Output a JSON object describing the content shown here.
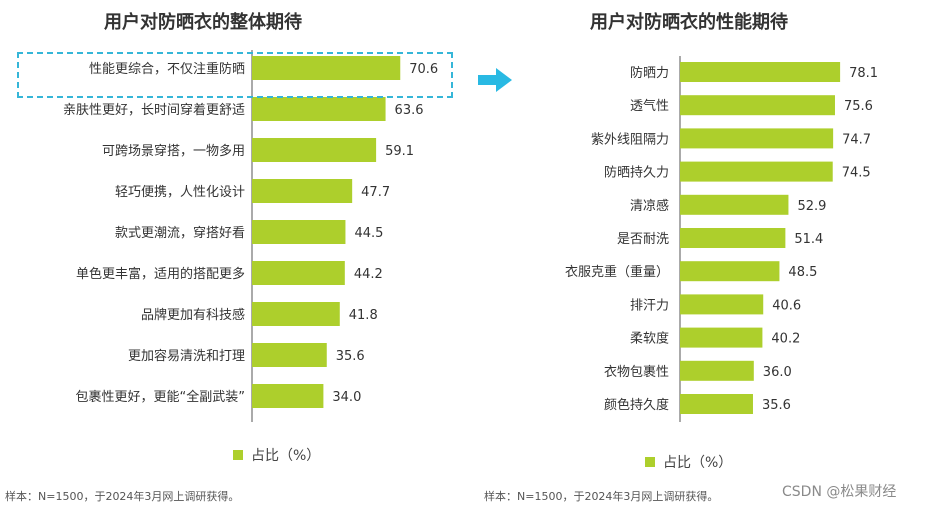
{
  "colors": {
    "bar": "#adcf2c",
    "axis": "#555555",
    "highlight": "#35b6d8",
    "arrow": "#29b9e3"
  },
  "legend_label": "占比（%）",
  "sample_note": "样本：N=1500，于2024年3月网上调研获得。",
  "watermark": "CSDN @松果财经",
  "icons": {
    "arrow": "right-arrow-icon"
  },
  "chart_data": [
    {
      "type": "bar",
      "orientation": "horizontal",
      "title": "用户对防晒衣的整体期待",
      "categories": [
        "性能更综合，不仅注重防晒",
        "亲肤性更好，长时间穿着更舒适",
        "可跨场景穿搭，一物多用",
        "轻巧便携，人性化设计",
        "款式更潮流，穿搭好看",
        "单色更丰富，适用的搭配更多",
        "品牌更加有科技感",
        "更加容易清洗和打理",
        "包裹性更好，更能“全副武装”"
      ],
      "values": [
        70.6,
        63.6,
        59.1,
        47.7,
        44.5,
        44.2,
        41.8,
        35.6,
        34.0
      ],
      "value_labels": [
        "70.6",
        "63.6",
        "59.1",
        "47.7",
        "44.5",
        "44.2",
        "41.8",
        "35.6",
        "34.0"
      ],
      "xlim": [
        0,
        100
      ],
      "legend": "占比（%）",
      "highlighted_category": "性能更综合，不仅注重防晒"
    },
    {
      "type": "bar",
      "orientation": "horizontal",
      "title": "用户对防晒衣的性能期待",
      "categories": [
        "防晒力",
        "透气性",
        "紫外线阻隔力",
        "防晒持久力",
        "清凉感",
        "是否耐洗",
        "衣服克重（重量）",
        "排汗力",
        "柔软度",
        "衣物包裹性",
        "颜色持久度"
      ],
      "values": [
        78.1,
        75.6,
        74.7,
        74.5,
        52.9,
        51.4,
        48.5,
        40.6,
        40.2,
        36.0,
        35.6
      ],
      "value_labels": [
        "78.1",
        "75.6",
        "74.7",
        "74.5",
        "52.9",
        "51.4",
        "48.5",
        "40.6",
        "40.2",
        "36.0",
        "35.6"
      ],
      "xlim": [
        0,
        100
      ],
      "legend": "占比（%）"
    }
  ]
}
